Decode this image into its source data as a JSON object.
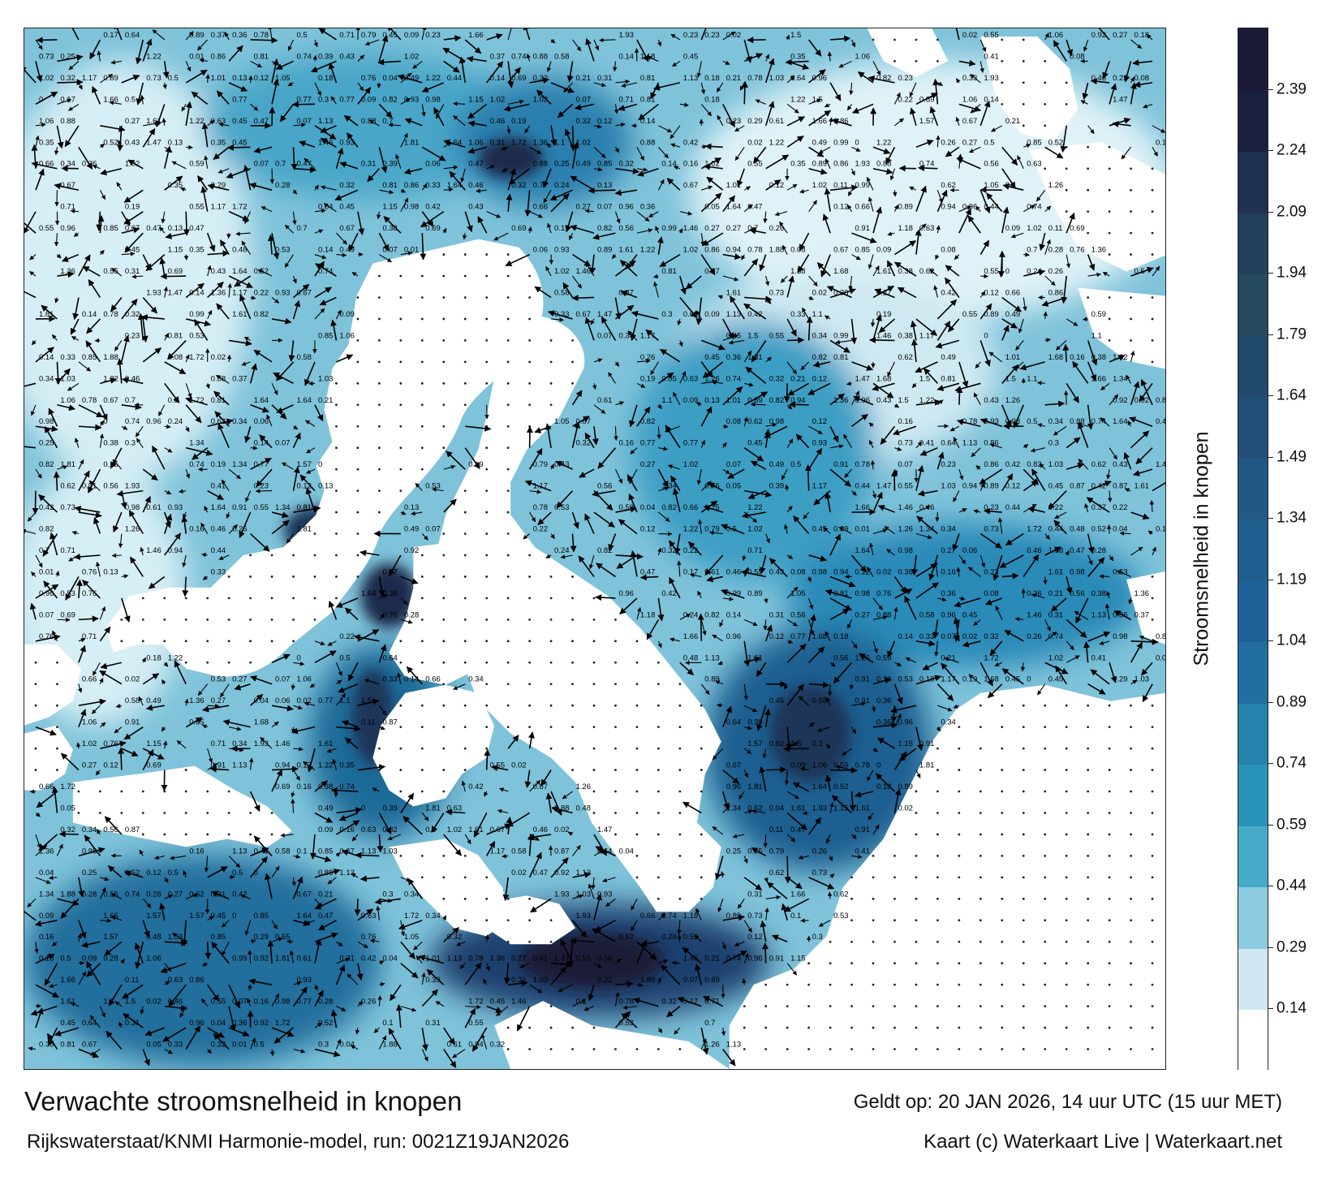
{
  "map": {
    "colors": {
      "land": "#ffffff",
      "water_light": "#d8eef5",
      "water_mid": "#2f9cc0",
      "water_dark": "#1a4f7a",
      "water_darkest": "#1c1c3e",
      "arrow": "#000000"
    },
    "speed_labels": [
      "0.27",
      "0.28",
      "0.29",
      "0.32",
      "0.35",
      "0.41",
      "0.44",
      "0.48",
      "0.49",
      "0.14",
      "0.25",
      "0.12",
      "0.11",
      "0.16",
      "0.18",
      "0.21",
      "0.24",
      "0.3",
      "0.47",
      "0.52",
      "0.62",
      "0.61",
      "0.64",
      "0.73",
      "0.76",
      "0.59",
      "0.55",
      "0.45",
      "0.38",
      "0.13",
      "0.09",
      "0.07",
      "0.06",
      "0.04",
      "0.02",
      "0.08",
      "0.1",
      "0.19",
      "0.22",
      "0.26",
      "0.36",
      "0.33",
      "0.34",
      "0.39",
      "0.43",
      "0.79",
      "0.81",
      "0.82",
      "0.69",
      "0.67",
      "0.86",
      "0.92",
      "1.05",
      "1.18",
      "1.36",
      "1.34",
      "1.22",
      "1.5",
      "1.61",
      "1.66",
      "1.88",
      "1.93",
      "1.26",
      "1.01",
      "1.13",
      "1.46",
      "1.81",
      "1.68",
      "1.64",
      "1.72",
      "1.57",
      "1.47",
      "1.02",
      "0.98",
      "0.87",
      "0.71",
      "0.63",
      "0.56",
      "0.53",
      "0.94",
      "0.96",
      "0.78",
      "0.05",
      "0.01",
      "0",
      "0.17",
      "0.23",
      "0.31",
      "0.37",
      "0.42",
      "0.46",
      "0.5",
      "0.58",
      "0.66",
      "0.7",
      "0.74",
      "0.77",
      "0.85",
      "0.88",
      "0.89",
      "0.91",
      "0.93",
      "0.99",
      "1.03",
      "1.06",
      "1.1",
      "1.15",
      "1.17"
    ]
  },
  "colorbar": {
    "label": "Stroomsnelheid in knopen",
    "ticks": [
      "0.14",
      "0.29",
      "0.44",
      "0.59",
      "0.74",
      "0.89",
      "1.04",
      "1.19",
      "1.34",
      "1.49",
      "1.64",
      "1.79",
      "1.94",
      "2.09",
      "2.24",
      "2.39"
    ],
    "colors": [
      "#ffffff",
      "#cfe7f0",
      "#8ccbe0",
      "#46aac9",
      "#2a93ba",
      "#2782ad",
      "#236ea0",
      "#1f6299",
      "#205e90",
      "#215884",
      "#224f78",
      "#214a6c",
      "#264a5e",
      "#22405c",
      "#1f3150",
      "#1c2040",
      "#1a1a38"
    ]
  },
  "title": "Verwachte stroomsnelheid in knopen",
  "valid_time": "Geldt op: 20 JAN 2026, 14 uur UTC (15 uur MET)",
  "model_run": "Rijkswaterstaat/KNMI Harmonie-model, run: 0021Z19JAN2026",
  "credit": "Kaart (c) Waterkaart Live | Waterkaart.net"
}
